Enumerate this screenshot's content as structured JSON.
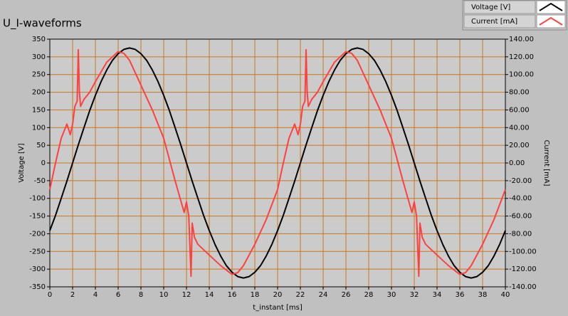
{
  "chart_data": {
    "type": "line",
    "title": "U_I-waveforms",
    "xlabel": "t_instant [ms]",
    "ylabel": "Voltage [V]",
    "y2label": "Current [mA]",
    "xlim": [
      0,
      40
    ],
    "xticks": [
      0,
      2,
      4,
      6,
      8,
      10,
      12,
      14,
      16,
      18,
      20,
      22,
      24,
      26,
      28,
      30,
      32,
      34,
      36,
      38,
      40
    ],
    "ylim": [
      -350,
      350
    ],
    "yticks": [
      -350,
      -300,
      -250,
      -200,
      -150,
      -100,
      -50,
      0,
      50,
      100,
      150,
      200,
      250,
      300,
      350
    ],
    "y2lim": [
      -140,
      140
    ],
    "y2ticks": [
      {
        "value": -140,
        "label": "-140.00"
      },
      {
        "value": -120,
        "label": "-120.00"
      },
      {
        "value": -100,
        "label": "-100.00"
      },
      {
        "value": -80,
        "label": "-80.00"
      },
      {
        "value": -60,
        "label": "-60.00"
      },
      {
        "value": -40,
        "label": "-40.00"
      },
      {
        "value": -20,
        "label": "-20.00"
      },
      {
        "value": 0,
        "label": "0.00"
      },
      {
        "value": 20,
        "label": "20.00"
      },
      {
        "value": 40,
        "label": "40.00"
      },
      {
        "value": 60,
        "label": "60.00"
      },
      {
        "value": 80,
        "label": "80.00"
      },
      {
        "value": 100,
        "label": "100.00"
      },
      {
        "value": 120,
        "label": "120.00"
      },
      {
        "value": 140,
        "label": "140.00"
      }
    ],
    "grid": true,
    "grid_color": "#c8781e",
    "legend": "top-right",
    "series": [
      {
        "name": "Voltage [V]",
        "color": "#000000",
        "axis": "y",
        "x": [
          0,
          0.5,
          1,
          1.5,
          2,
          2.5,
          3,
          3.5,
          4,
          4.5,
          5,
          5.5,
          6,
          6.5,
          7,
          7.5,
          8,
          8.5,
          9,
          9.5,
          10,
          10.5,
          11,
          11.5,
          12,
          12.5,
          13,
          13.5,
          14,
          14.5,
          15,
          15.5,
          16,
          16.5,
          17,
          17.5,
          18,
          18.5,
          19,
          19.5,
          20,
          20.5,
          21,
          21.5,
          22,
          22.5,
          23,
          23.5,
          24,
          24.5,
          25,
          25.5,
          26,
          26.5,
          27,
          27.5,
          28,
          28.5,
          29,
          29.5,
          30,
          30.5,
          31,
          31.5,
          32,
          32.5,
          33,
          33.5,
          34,
          34.5,
          35,
          35.5,
          36,
          36.5,
          37,
          37.5,
          38,
          38.5,
          39,
          39.5,
          40
        ],
        "values": [
          -191,
          -148,
          -100,
          -51,
          0,
          51,
          100,
          148,
          191,
          230,
          263,
          290,
          309,
          321,
          325,
          321,
          309,
          290,
          263,
          230,
          191,
          148,
          100,
          51,
          0,
          -51,
          -100,
          -148,
          -191,
          -230,
          -263,
          -290,
          -309,
          -321,
          -325,
          -321,
          -309,
          -290,
          -263,
          -230,
          -191,
          -148,
          -100,
          -51,
          0,
          51,
          100,
          148,
          191,
          230,
          263,
          290,
          309,
          321,
          325,
          321,
          309,
          290,
          263,
          230,
          191,
          148,
          100,
          51,
          0,
          -51,
          -100,
          -148,
          -191,
          -230,
          -263,
          -290,
          -309,
          -321,
          -325,
          -321,
          -309,
          -290,
          -263,
          -230,
          -191
        ]
      },
      {
        "name": "Current [mA]",
        "color": "#ff4040",
        "axis": "y2",
        "x": [
          0,
          0.5,
          1,
          1.5,
          1.8,
          2,
          2.2,
          2.4,
          2.5,
          2.6,
          2.7,
          3,
          3.5,
          4,
          5,
          6,
          6.5,
          7,
          8,
          9,
          10,
          11,
          11.8,
          12,
          12.2,
          12.4,
          12.5,
          12.7,
          13,
          14,
          15,
          16,
          16.5,
          17,
          18,
          19,
          20,
          20.5,
          21,
          21.5,
          21.8,
          22,
          22.2,
          22.4,
          22.5,
          22.6,
          22.7,
          23,
          23.5,
          24,
          25,
          26,
          26.5,
          27,
          28,
          29,
          30,
          31,
          31.8,
          32,
          32.2,
          32.4,
          32.5,
          32.7,
          33,
          34,
          35,
          36,
          36.5,
          37,
          38,
          39,
          40
        ],
        "values": [
          -30,
          0,
          28,
          44,
          32,
          44,
          64,
          70,
          128,
          80,
          64,
          72,
          80,
          92,
          114,
          126,
          124,
          116,
          88,
          60,
          28,
          -20,
          -56,
          -44,
          -60,
          -128,
          -68,
          -84,
          -92,
          -104,
          -116,
          -126,
          -124,
          -116,
          -92,
          -64,
          -30,
          0,
          28,
          44,
          32,
          44,
          64,
          70,
          128,
          80,
          64,
          72,
          80,
          92,
          114,
          126,
          124,
          116,
          88,
          60,
          28,
          -20,
          -56,
          -44,
          -60,
          -128,
          -68,
          -84,
          -92,
          -104,
          -116,
          -126,
          -124,
          -116,
          -92,
          -64,
          -30
        ]
      }
    ]
  }
}
